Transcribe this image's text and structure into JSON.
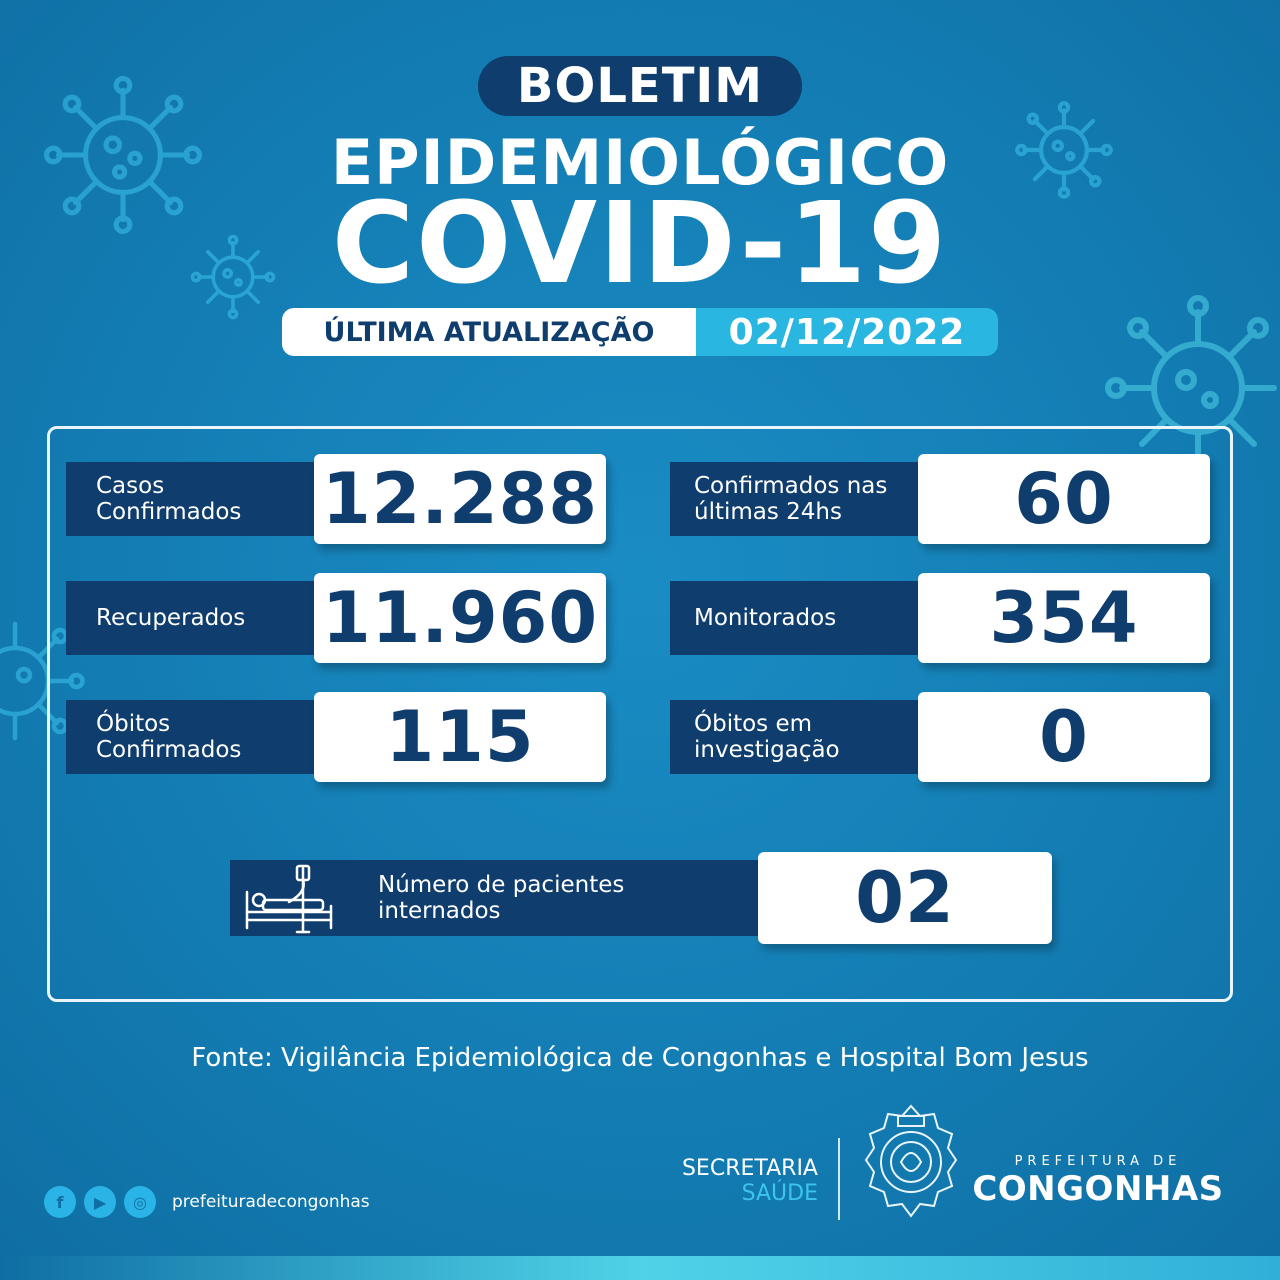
{
  "header": {
    "boletim": "BOLETIM",
    "epidemiologico": "EPIDEMIOLÓGICO",
    "covid": "COVID-19",
    "update_label": "ÚLTIMA ATUALIZAÇÃO",
    "update_date": "02/12/2022"
  },
  "stats_left": [
    {
      "label_line1": "Casos",
      "label_line2": "Confirmados",
      "value": "12.288"
    },
    {
      "label_line1": "Recuperados",
      "label_line2": "",
      "value": "11.960"
    },
    {
      "label_line1": "Óbitos",
      "label_line2": "Confirmados",
      "value": "115"
    }
  ],
  "stats_right": [
    {
      "label_line1": "Confirmados nas",
      "label_line2": "últimas 24hs",
      "value": "60"
    },
    {
      "label_line1": "Monitorados",
      "label_line2": "",
      "value": "354"
    },
    {
      "label_line1": "Óbitos em",
      "label_line2": "investigação",
      "value": "0"
    }
  ],
  "internados": {
    "icon": "hospital-bed-icon",
    "label_line1": "Número de pacientes",
    "label_line2": "internados",
    "value": "02"
  },
  "fonte": "Fonte: Vigilância Epidemiológica de Congonhas e Hospital Bom Jesus",
  "footer": {
    "social_icons": [
      "facebook-icon",
      "youtube-icon",
      "instagram-icon"
    ],
    "handle": "prefeituradecongonhas",
    "secretaria": "SECRETARIA",
    "saude": "SAÚDE",
    "prefeitura_small": "PREFEITURA DE",
    "prefeitura_big": "CONGONHAS"
  },
  "colors": {
    "background": "#1580b6",
    "navy": "#0f3d6e",
    "accent": "#29b6e0",
    "white": "#ffffff"
  }
}
